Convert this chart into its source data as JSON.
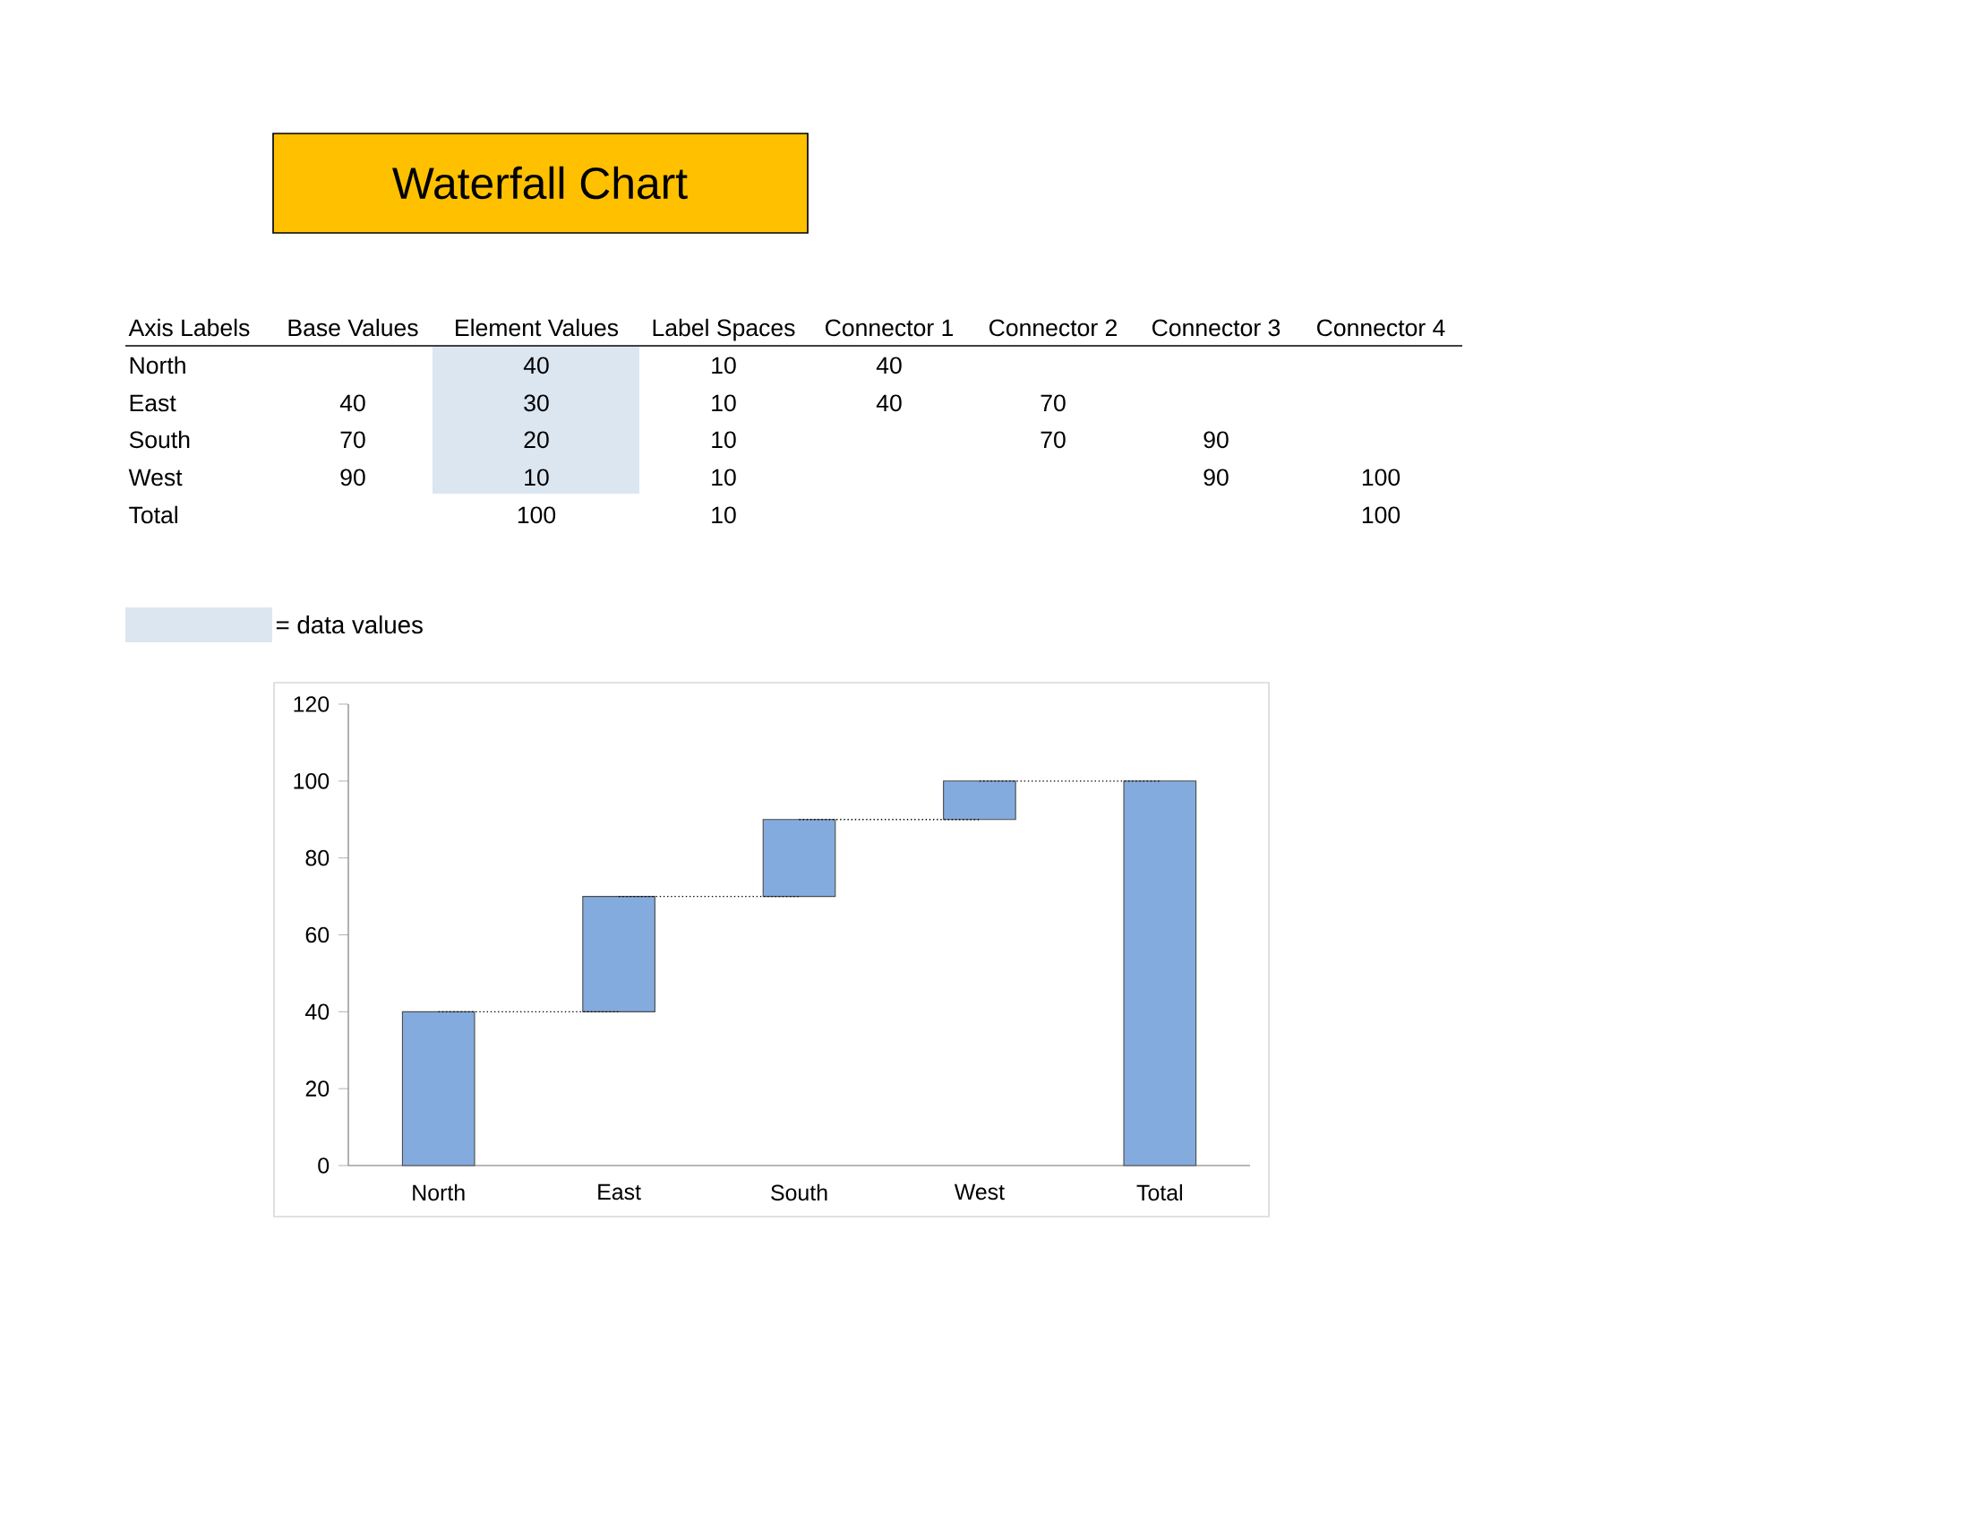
{
  "chart_data": {
    "type": "bar",
    "title": "Waterfall Chart",
    "categories": [
      "North",
      "East",
      "South",
      "West",
      "Total"
    ],
    "series": [
      {
        "color": "#84abde",
        "values": [
          40,
          30,
          20,
          10,
          100
        ],
        "base": [
          0,
          40,
          70,
          90,
          0
        ]
      },
      {
        "type": "line",
        "color": "#000000",
        "line_style": "dotted",
        "values": [
          40,
          40,
          null,
          null,
          null
        ]
      },
      {
        "type": "line",
        "color": "#000000",
        "line_style": "dotted",
        "values": [
          null,
          70,
          70,
          null,
          null
        ]
      },
      {
        "type": "line",
        "color": "#000000",
        "line_style": "dotted",
        "values": [
          null,
          null,
          90,
          90,
          null
        ]
      },
      {
        "type": "line",
        "color": "#000000",
        "line_style": "dotted",
        "values": [
          null,
          null,
          null,
          100,
          100
        ]
      }
    ],
    "ylim": [
      0,
      120
    ],
    "yticks": [
      0,
      20,
      40,
      60,
      80,
      100,
      120
    ],
    "grid": false,
    "annotations": [
      "Axis Labels",
      "Base Values",
      "Element Values",
      "Label Spaces",
      "Connector 1",
      "Connector 2",
      "Connector 3",
      "Connector 4",
      "North",
      "40",
      "10",
      "40",
      "East",
      "40",
      "30",
      "10",
      "40",
      "70",
      "South",
      "70",
      "20",
      "10",
      "70",
      "90",
      "West",
      "90",
      "10",
      "10",
      "90",
      "100",
      "Total",
      "100",
      "10",
      "100",
      "= data values"
    ]
  }
}
